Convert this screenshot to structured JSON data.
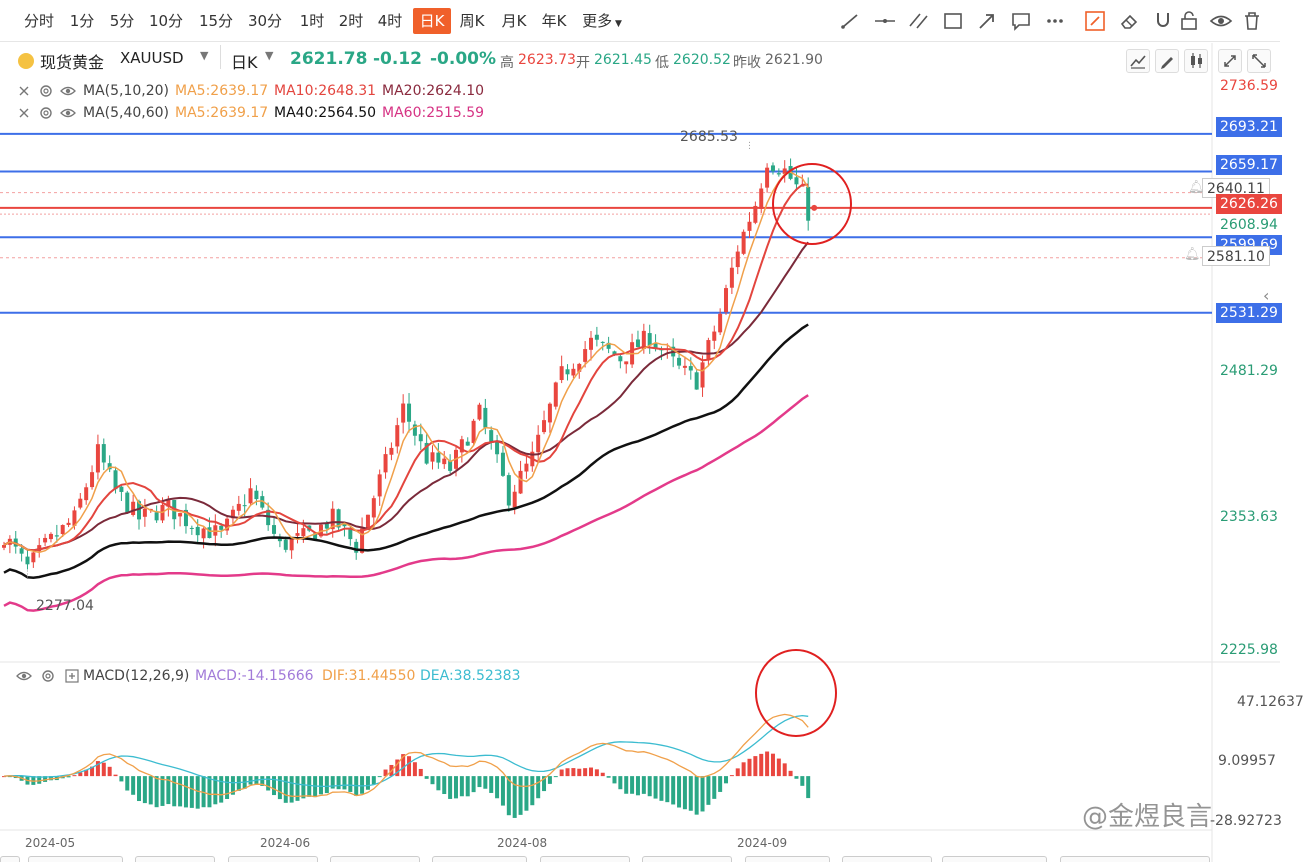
{
  "toolbar": {
    "periods": [
      "分时",
      "1分",
      "5分",
      "10分",
      "15分",
      "30分",
      "1时",
      "2时",
      "4时",
      "日K",
      "周K",
      "月K",
      "年K",
      "更多"
    ],
    "active_period": "日K",
    "more_icon": "caret-down-icon",
    "tools": [
      "line-tool-icon",
      "horizontal-line-icon",
      "parallel-lines-icon",
      "rectangle-icon",
      "arrow-icon",
      "comment-icon",
      "more-dots-icon",
      "draw-mode-icon",
      "eraser-icon",
      "magnet-icon",
      "lock-icon",
      "eye-icon",
      "trash-icon"
    ]
  },
  "info": {
    "symbol": "现货黄金",
    "code": "XAUUSD",
    "period": "日K",
    "price": "2621.78",
    "change": "-0.12",
    "change_pct": "-0.00%",
    "high_label": "高",
    "high": "2623.73",
    "open_label": "开",
    "open": "2621.45",
    "low_label": "低",
    "low": "2620.52",
    "prev_label": "昨收",
    "prev": "2621.90"
  },
  "ma": {
    "row1": {
      "name": "MA(5,10,20)",
      "a": "MA5:2639.17",
      "b": "MA10:2648.31",
      "c": "MA20:2624.10"
    },
    "row2": {
      "name": "MA(5,40,60)",
      "a": "MA5:2639.17",
      "b": "MA40:2564.50",
      "c": "MA60:2515.59"
    }
  },
  "macd": {
    "name": "MACD(12,26,9)",
    "macd": "MACD:-14.15666",
    "dif": "DIF:31.44550",
    "dea": "DEA:38.52383"
  },
  "price_axis": {
    "top": "2736.59",
    "l2693": "2693.21",
    "l2659": "2659.17",
    "l2640": "2640.11",
    "current": "2626.26",
    "l2608": "2608.94",
    "l2599": "2599.69",
    "l2581": "2581.10",
    "l2531": "2531.29",
    "l2481": "2481.29",
    "l2353": "2353.63",
    "l2225": "2225.98"
  },
  "macd_axis": {
    "a": "47.12637",
    "b": "9.09957",
    "c": "-28.92723"
  },
  "annotations": {
    "high_mark": "2685.53",
    "low_mark": "2277.04"
  },
  "dates": [
    "2024-05",
    "2024-06",
    "2024-08",
    "2024-09"
  ],
  "watermark": "@金煜良言",
  "colors": {
    "up": "#e9463f",
    "down": "#2aa786",
    "hline": "#3d6fe8",
    "ma5": "#f0a04a",
    "ma10": "#e3453e",
    "ma20": "#7a2a3a",
    "ma40": "#111111",
    "ma60": "#e33a8a",
    "dif": "#f0a04a",
    "dea": "#3cbcd0",
    "accent": "#f0602a"
  }
}
